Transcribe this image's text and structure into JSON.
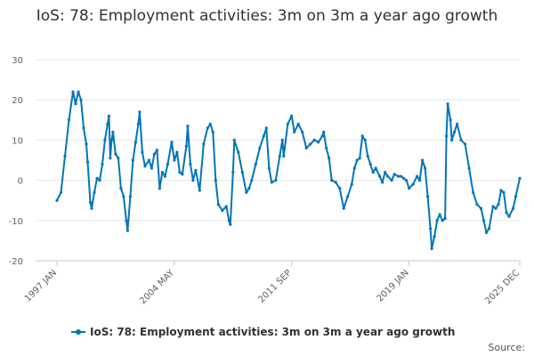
{
  "chart_data": {
    "type": "line",
    "title": "IoS: 78: Employment activities: 3m on 3m a year ago growth",
    "xlabel": "",
    "ylabel": "",
    "ylim": [
      -20,
      30
    ],
    "y_ticks": [
      -20,
      -10,
      0,
      10,
      20,
      30
    ],
    "x_tick_labels": [
      "1997 JAN",
      "2004 MAY",
      "2011 SEP",
      "2019 JAN",
      "2025 DEC"
    ],
    "grid": "horizontal",
    "legend_position": "bottom",
    "credits": "Source:",
    "series": [
      {
        "name": "IoS: 78: Employment activities: 3m on 3m a year ago growth",
        "color": "#0075b8",
        "points": [
          [
            "1997 Jan",
            -5
          ],
          [
            "1997 Apr",
            -3
          ],
          [
            "1997 Jul",
            6
          ],
          [
            "1997 Oct",
            15
          ],
          [
            "1998 Jan",
            22
          ],
          [
            "1998 Mar",
            19
          ],
          [
            "1998 May",
            22
          ],
          [
            "1998 Jul",
            20
          ],
          [
            "1998 Sep",
            13
          ],
          [
            "1998 Nov",
            9
          ],
          [
            "1998 Dec",
            4.5
          ],
          [
            "1999 Feb",
            -5.5
          ],
          [
            "1999 Mar",
            -7
          ],
          [
            "1999 May",
            -3
          ],
          [
            "1999 Jul",
            0.5
          ],
          [
            "1999 Sep",
            0
          ],
          [
            "1999 Nov",
            4
          ],
          [
            "2000 Jan",
            10
          ],
          [
            "2000 Mar",
            14
          ],
          [
            "2000 Apr",
            16
          ],
          [
            "2000 May",
            5.5
          ],
          [
            "2000 Jun",
            10
          ],
          [
            "2000 Jul",
            12
          ],
          [
            "2000 Sep",
            6.5
          ],
          [
            "2000 Nov",
            5.5
          ],
          [
            "2001 Jan",
            -2
          ],
          [
            "2001 Mar",
            -4
          ],
          [
            "2001 May",
            -10
          ],
          [
            "2001 Jun",
            -12.5
          ],
          [
            "2001 Aug",
            -4
          ],
          [
            "2001 Oct",
            5
          ],
          [
            "2001 Dec",
            9.5
          ],
          [
            "2002 Feb",
            14
          ],
          [
            "2002 Mar",
            17
          ],
          [
            "2002 May",
            7
          ],
          [
            "2002 Jul",
            3.5
          ],
          [
            "2002 Oct",
            5
          ],
          [
            "2002 Dec",
            3
          ],
          [
            "2003 Feb",
            6.5
          ],
          [
            "2003 Apr",
            7.5
          ],
          [
            "2003 Jun",
            -2
          ],
          [
            "2003 Aug",
            2
          ],
          [
            "2003 Oct",
            1
          ],
          [
            "2003 Dec",
            4
          ],
          [
            "2004 Mar",
            9.5
          ],
          [
            "2004 May",
            5
          ],
          [
            "2004 Jul",
            7
          ],
          [
            "2004 Sep",
            2
          ],
          [
            "2004 Nov",
            1.5
          ],
          [
            "2005 Feb",
            8.5
          ],
          [
            "2005 Mar",
            13.5
          ],
          [
            "2005 May",
            4
          ],
          [
            "2005 Jul",
            0
          ],
          [
            "2005 Sep",
            2.5
          ],
          [
            "2005 Dec",
            -2.5
          ],
          [
            "2006 Mar",
            9
          ],
          [
            "2006 Jun",
            13
          ],
          [
            "2006 Aug",
            14
          ],
          [
            "2006 Oct",
            12
          ],
          [
            "2006 Dec",
            0
          ],
          [
            "2007 Feb",
            -6
          ],
          [
            "2007 May",
            -7.5
          ],
          [
            "2007 Aug",
            -6.5
          ],
          [
            "2007 Oct",
            -10
          ],
          [
            "2007 Nov",
            -11
          ],
          [
            "2008 Jan",
            2
          ],
          [
            "2008 Feb",
            10
          ],
          [
            "2008 May",
            7
          ],
          [
            "2008 Aug",
            2
          ],
          [
            "2008 Nov",
            -3
          ],
          [
            "2009 Jan",
            -2
          ],
          [
            "2009 Mar",
            0
          ],
          [
            "2009 Jun",
            4
          ],
          [
            "2009 Sep",
            8
          ],
          [
            "2009 Dec",
            11
          ],
          [
            "2010 Feb",
            13
          ],
          [
            "2010 Apr",
            3
          ],
          [
            "2010 Jun",
            -0.5
          ],
          [
            "2010 Sep",
            0
          ],
          [
            "2010 Dec",
            6
          ],
          [
            "2011 Feb",
            10
          ],
          [
            "2011 Mar",
            6
          ],
          [
            "2011 Jun",
            14
          ],
          [
            "2011 Sep",
            16
          ],
          [
            "2011 Nov",
            12
          ],
          [
            "2012 Feb",
            14
          ],
          [
            "2012 May",
            12
          ],
          [
            "2012 Aug",
            8
          ],
          [
            "2012 Nov",
            9
          ],
          [
            "2013 Feb",
            10
          ],
          [
            "2013 May",
            9.5
          ],
          [
            "2013 Aug",
            11
          ],
          [
            "2013 Sep",
            12
          ],
          [
            "2013 Nov",
            8
          ],
          [
            "2014 Jan",
            5.5
          ],
          [
            "2014 Mar",
            0
          ],
          [
            "2014 Jun",
            -0.5
          ],
          [
            "2014 Sep",
            -2
          ],
          [
            "2014 Dec",
            -7
          ],
          [
            "2015 Mar",
            -4
          ],
          [
            "2015 Jun",
            -1
          ],
          [
            "2015 Aug",
            3
          ],
          [
            "2015 Oct",
            5
          ],
          [
            "2015 Dec",
            5.5
          ],
          [
            "2016 Feb",
            11
          ],
          [
            "2016 Apr",
            10
          ],
          [
            "2016 Jun",
            6
          ],
          [
            "2016 Aug",
            4
          ],
          [
            "2016 Oct",
            2
          ],
          [
            "2016 Dec",
            3
          ],
          [
            "2017 Mar",
            1
          ],
          [
            "2017 May",
            -0.5
          ],
          [
            "2017 Jul",
            2
          ],
          [
            "2017 Sep",
            1
          ],
          [
            "2017 Dec",
            0
          ],
          [
            "2018 Feb",
            1.5
          ],
          [
            "2018 May",
            1
          ],
          [
            "2018 Jul",
            1
          ],
          [
            "2018 Sep",
            0.5
          ],
          [
            "2018 Nov",
            0
          ],
          [
            "2019 Jan",
            -2
          ],
          [
            "2019 Apr",
            -1
          ],
          [
            "2019 Jul",
            1
          ],
          [
            "2019 Sep",
            0
          ],
          [
            "2019 Nov",
            5
          ],
          [
            "2020 Jan",
            3
          ],
          [
            "2020 Mar",
            -4
          ],
          [
            "2020 May",
            -12
          ],
          [
            "2020 Jun",
            -17
          ],
          [
            "2020 Aug",
            -14
          ],
          [
            "2020 Oct",
            -10
          ],
          [
            "2020 Dec",
            -8.5
          ],
          [
            "2021 Feb",
            -10
          ],
          [
            "2021 Apr",
            -9.5
          ],
          [
            "2021 May",
            11
          ],
          [
            "2021 Jun",
            19
          ],
          [
            "2021 Aug",
            15
          ],
          [
            "2021 Sep",
            10
          ],
          [
            "2021 Nov",
            12
          ],
          [
            "2022 Jan",
            14
          ],
          [
            "2022 Apr",
            10
          ],
          [
            "2022 Jul",
            9
          ],
          [
            "2022 Oct",
            3
          ],
          [
            "2023 Jan",
            -3
          ],
          [
            "2023 Apr",
            -6
          ],
          [
            "2023 Jul",
            -7
          ],
          [
            "2023 Sep",
            -10
          ],
          [
            "2023 Nov",
            -13
          ],
          [
            "2024 Jan",
            -12
          ],
          [
            "2024 Apr",
            -6.5
          ],
          [
            "2024 Jun",
            -7
          ],
          [
            "2024 Aug",
            -6
          ],
          [
            "2024 Oct",
            -2.5
          ],
          [
            "2024 Dec",
            -3
          ],
          [
            "2025 Feb",
            -8
          ],
          [
            "2025 Apr",
            -9
          ],
          [
            "2025 Jul",
            -7
          ],
          [
            "2025 Sep",
            -4
          ],
          [
            "2025 Dec",
            0.5
          ]
        ]
      }
    ]
  }
}
